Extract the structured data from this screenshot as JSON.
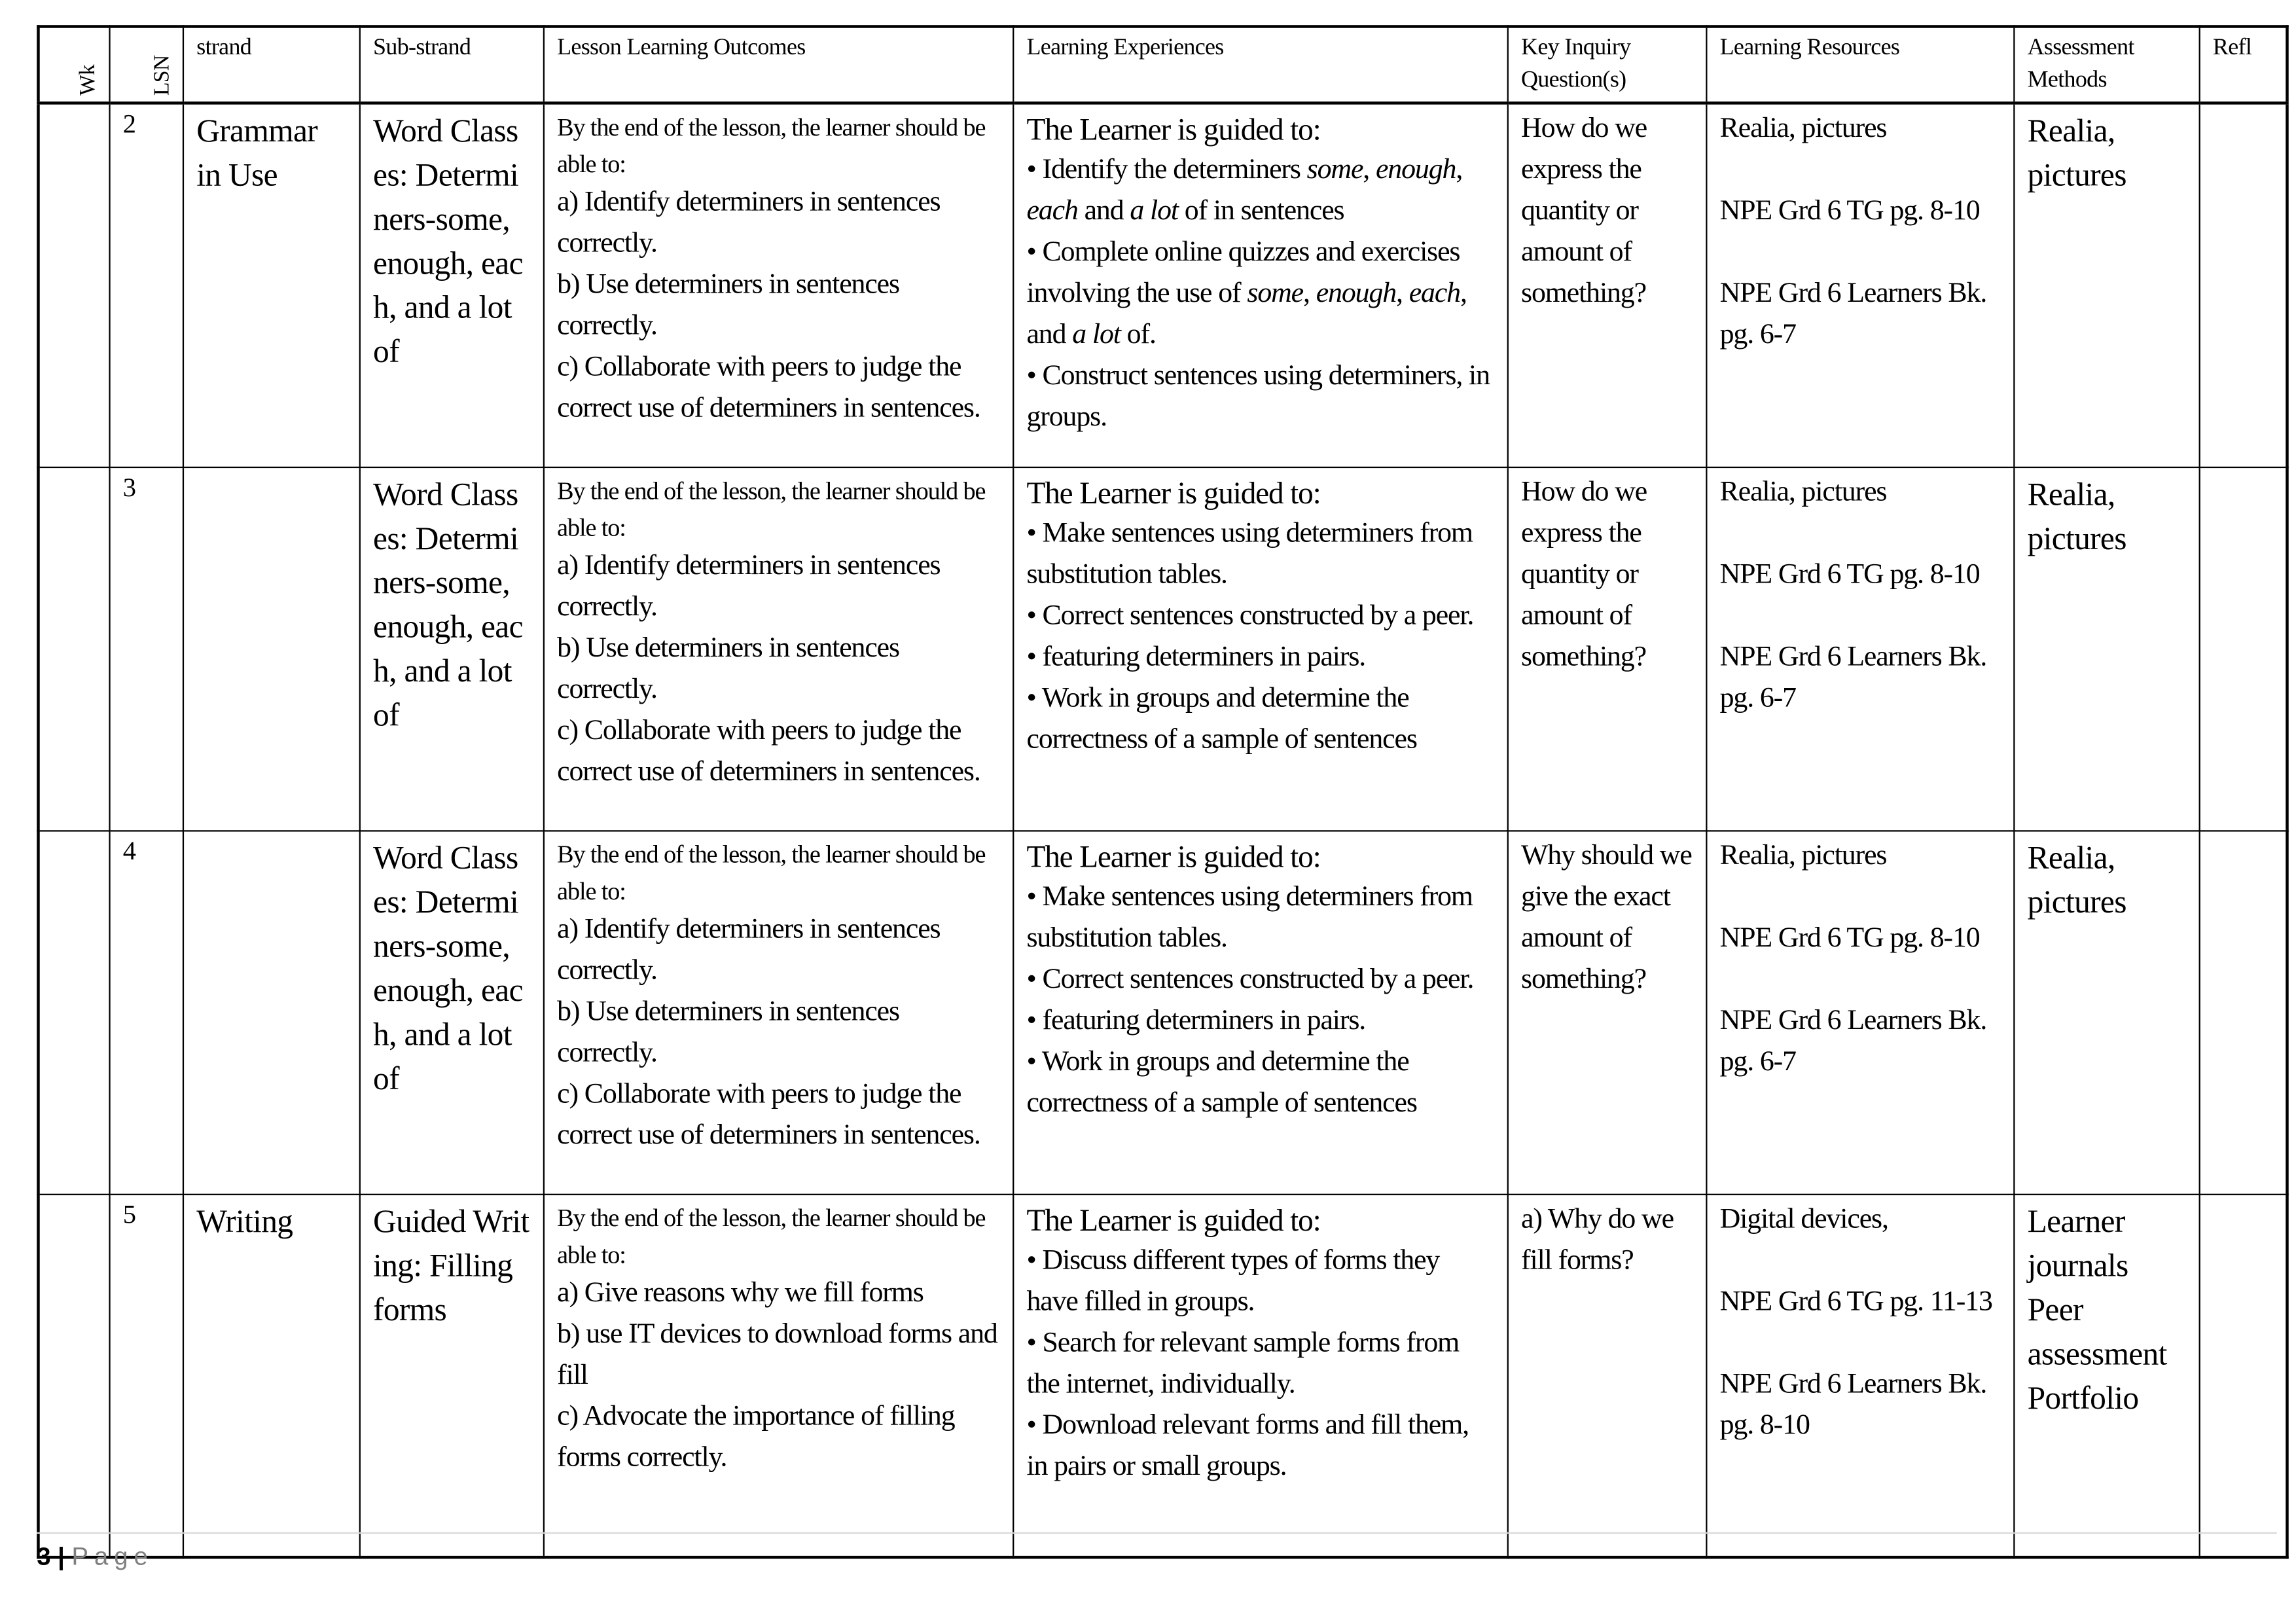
{
  "headers": [
    "Wk",
    "LSN",
    "strand",
    "Sub-strand",
    "Lesson Learning Outcomes",
    "Learning Experiences",
    "Key Inquiry Question(s)",
    "Learning Resources",
    "Assessment Methods",
    "Refl"
  ],
  "rows": [
    {
      "wk": "",
      "lsn": "2",
      "strand": "Grammar in Use",
      "substrand": "Word Classes: Determiners-some, enough, each, and a lot of",
      "outcomes_intro": "By the end of the lesson, the learner should be able to:",
      "outcomes": [
        "a) Identify determiners in sentences correctly.",
        "b) Use determiners in sentences correctly.",
        "c) Collaborate with peers to judge the correct use of determiners in sentences."
      ],
      "experiences_intro": "The Learner is guided to:",
      "experiences": [
        "• Identify the determiners some, enough, each and a lot of in sentences",
        "• Complete online quizzes and exercises involving the use of some, enough, each, and a lot of.",
        "• Construct sentences using determiners, in groups."
      ],
      "inquiry": "How do we express the quantity or amount of something?",
      "resources": [
        "Realia, pictures",
        "NPE Grd 6 TG pg. 8-10",
        "NPE Grd 6 Learners Bk. pg. 6-7"
      ],
      "assessment": "Realia, pictures",
      "reflection": ""
    },
    {
      "wk": "",
      "lsn": "3",
      "strand": "",
      "substrand": "Word Classes: Determiners-some, enough, each, and a lot of",
      "outcomes_intro": "By the end of the lesson, the learner should be able to:",
      "outcomes": [
        "a) Identify determiners in sentences correctly.",
        "b) Use determiners in sentences correctly.",
        "c) Collaborate with peers to judge the correct use of determiners in sentences."
      ],
      "experiences_intro": "The Learner is guided to:",
      "experiences": [
        "• Make sentences using determiners from substitution tables.",
        "• Correct sentences constructed by a peer.",
        "• featuring determiners in pairs.",
        "• Work in groups and determine the correctness of a sample of sentences"
      ],
      "inquiry": "How do we express the quantity or amount of something?",
      "resources": [
        "Realia, pictures",
        "NPE Grd 6 TG pg. 8-10",
        "NPE Grd 6 Learners Bk. pg. 6-7"
      ],
      "assessment": "Realia, pictures",
      "reflection": ""
    },
    {
      "wk": "",
      "lsn": "4",
      "strand": "",
      "substrand": "Word Classes: Determiners-some, enough, each, and a lot of",
      "outcomes_intro": "By the end of the lesson, the learner should be able to:",
      "outcomes": [
        "a) Identify determiners in sentences correctly.",
        "b) Use determiners in sentences correctly.",
        "c) Collaborate with peers to judge the correct use of determiners in sentences."
      ],
      "experiences_intro": "The Learner is guided to:",
      "experiences": [
        "• Make sentences using determiners from substitution tables.",
        "• Correct sentences constructed by a peer.",
        "• featuring determiners in pairs.",
        "• Work in groups and determine the correctness of a sample of sentences"
      ],
      "inquiry": "Why should we give the exact amount of something?",
      "resources": [
        "Realia, pictures",
        "NPE Grd 6 TG pg. 8-10",
        "NPE Grd 6 Learners Bk. pg. 6-7"
      ],
      "assessment": "Realia, pictures",
      "reflection": ""
    },
    {
      "wk": "",
      "lsn": "5",
      "strand": "Writing",
      "substrand": "Guided Writing: Filling forms",
      "outcomes_intro": "By the end of the lesson, the learner should be able to:",
      "outcomes": [
        "a) Give reasons why we fill forms",
        "b) use IT devices to download forms and fill",
        "c) Advocate the importance of filling forms correctly."
      ],
      "experiences_intro": "The Learner is guided to:",
      "experiences": [
        "• Discuss different types of forms they have filled in groups.",
        "• Search for relevant sample forms from the internet, individually.",
        "• Download relevant forms and fill them, in pairs or small groups."
      ],
      "inquiry": "a) Why do we fill forms?",
      "resources": [
        "Digital devices,",
        "NPE Grd 6 TG pg. 11-13",
        "NPE Grd 6 Learners Bk. pg. 8-10"
      ],
      "assessment": "Learner journals Peer assessment Portfolio",
      "reflection": ""
    }
  ],
  "footer": {
    "page_number": "3",
    "separator": "|",
    "page_label": "Page"
  }
}
